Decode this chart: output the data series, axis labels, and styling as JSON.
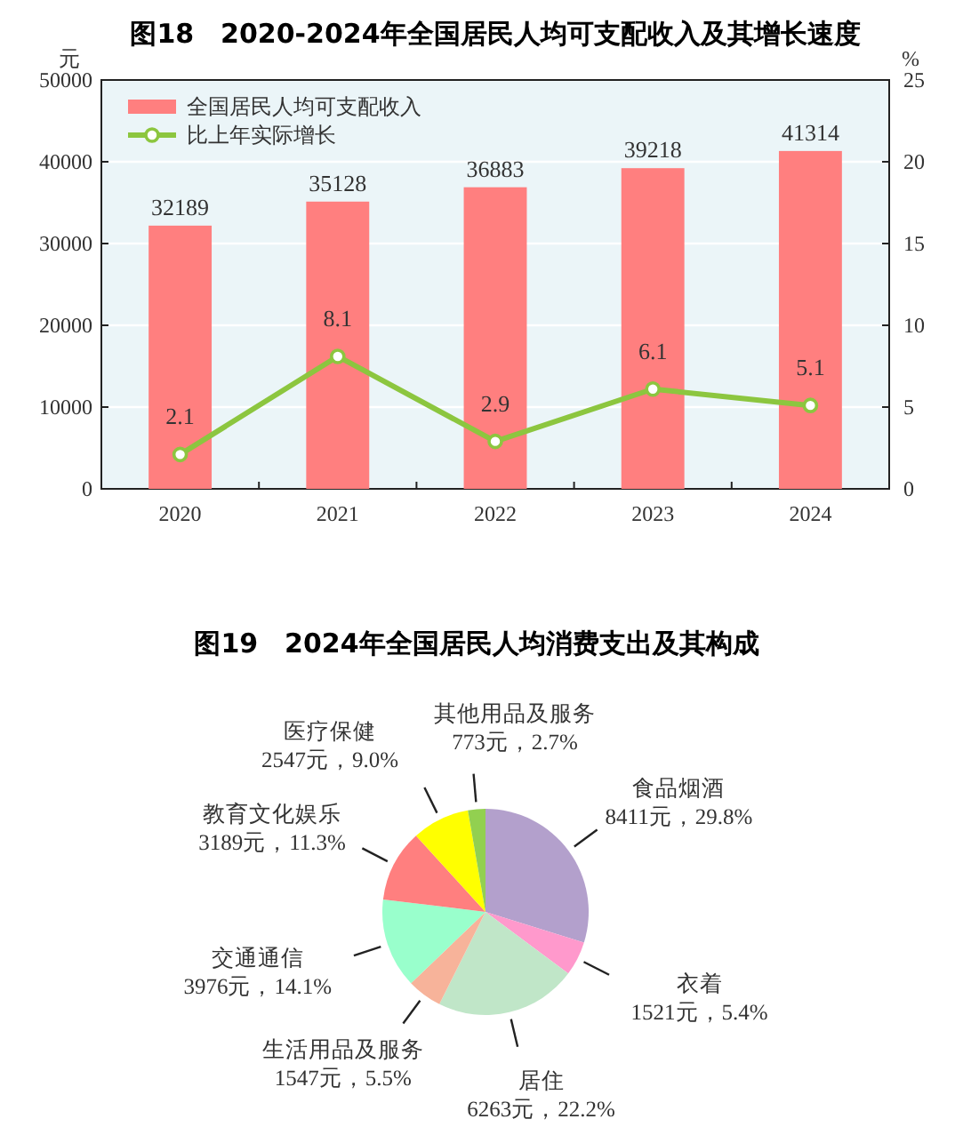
{
  "chart_data": [
    {
      "type": "bar",
      "title": "图18　2020-2024年全国居民人均可支配收入及其增长速度",
      "ylabel": "元",
      "y2label": "%",
      "categories": [
        "2020",
        "2021",
        "2022",
        "2023",
        "2024"
      ],
      "series": [
        {
          "name": "全国居民人均可支配收入",
          "type": "bar",
          "color": "#ff7f7f",
          "values": [
            32189,
            35128,
            36883,
            39218,
            41314
          ]
        },
        {
          "name": "比上年实际增长",
          "type": "line",
          "axis": "y2",
          "color": "#8cc63f",
          "marker": "circle",
          "values": [
            2.1,
            8.1,
            2.9,
            6.1,
            5.1
          ]
        }
      ],
      "ylim": [
        0,
        50000
      ],
      "yticks": [
        0,
        10000,
        20000,
        30000,
        40000,
        50000
      ],
      "y2lim": [
        0,
        25
      ],
      "y2ticks": [
        0,
        5,
        10,
        15,
        20,
        25
      ],
      "grid": "y",
      "legend": "top left",
      "data_labels": true
    },
    {
      "type": "pie",
      "title": "图19　2024年全国居民人均消费支出及其构成",
      "categories": [
        "食品烟酒",
        "衣着",
        "居住",
        "生活用品及服务",
        "交通通信",
        "教育文化娱乐",
        "医疗保健",
        "其他用品及服务"
      ],
      "values": [
        8411,
        1521,
        6263,
        1547,
        3976,
        3189,
        2547,
        773
      ],
      "value_labels": [
        "8411元，29.8%",
        "1521元，5.4%",
        "6263元，22.2%",
        "1547元，5.5%",
        "3976元，14.1%",
        "3189元，11.3%",
        "2547元，9.0%",
        "773元，2.7%"
      ],
      "colors": [
        "#b3a0cc",
        "#ff99cc",
        "#c0e6c8",
        "#f7b39a",
        "#99ffcc",
        "#ff7f7f",
        "#ffff00",
        "#92d050"
      ]
    }
  ]
}
